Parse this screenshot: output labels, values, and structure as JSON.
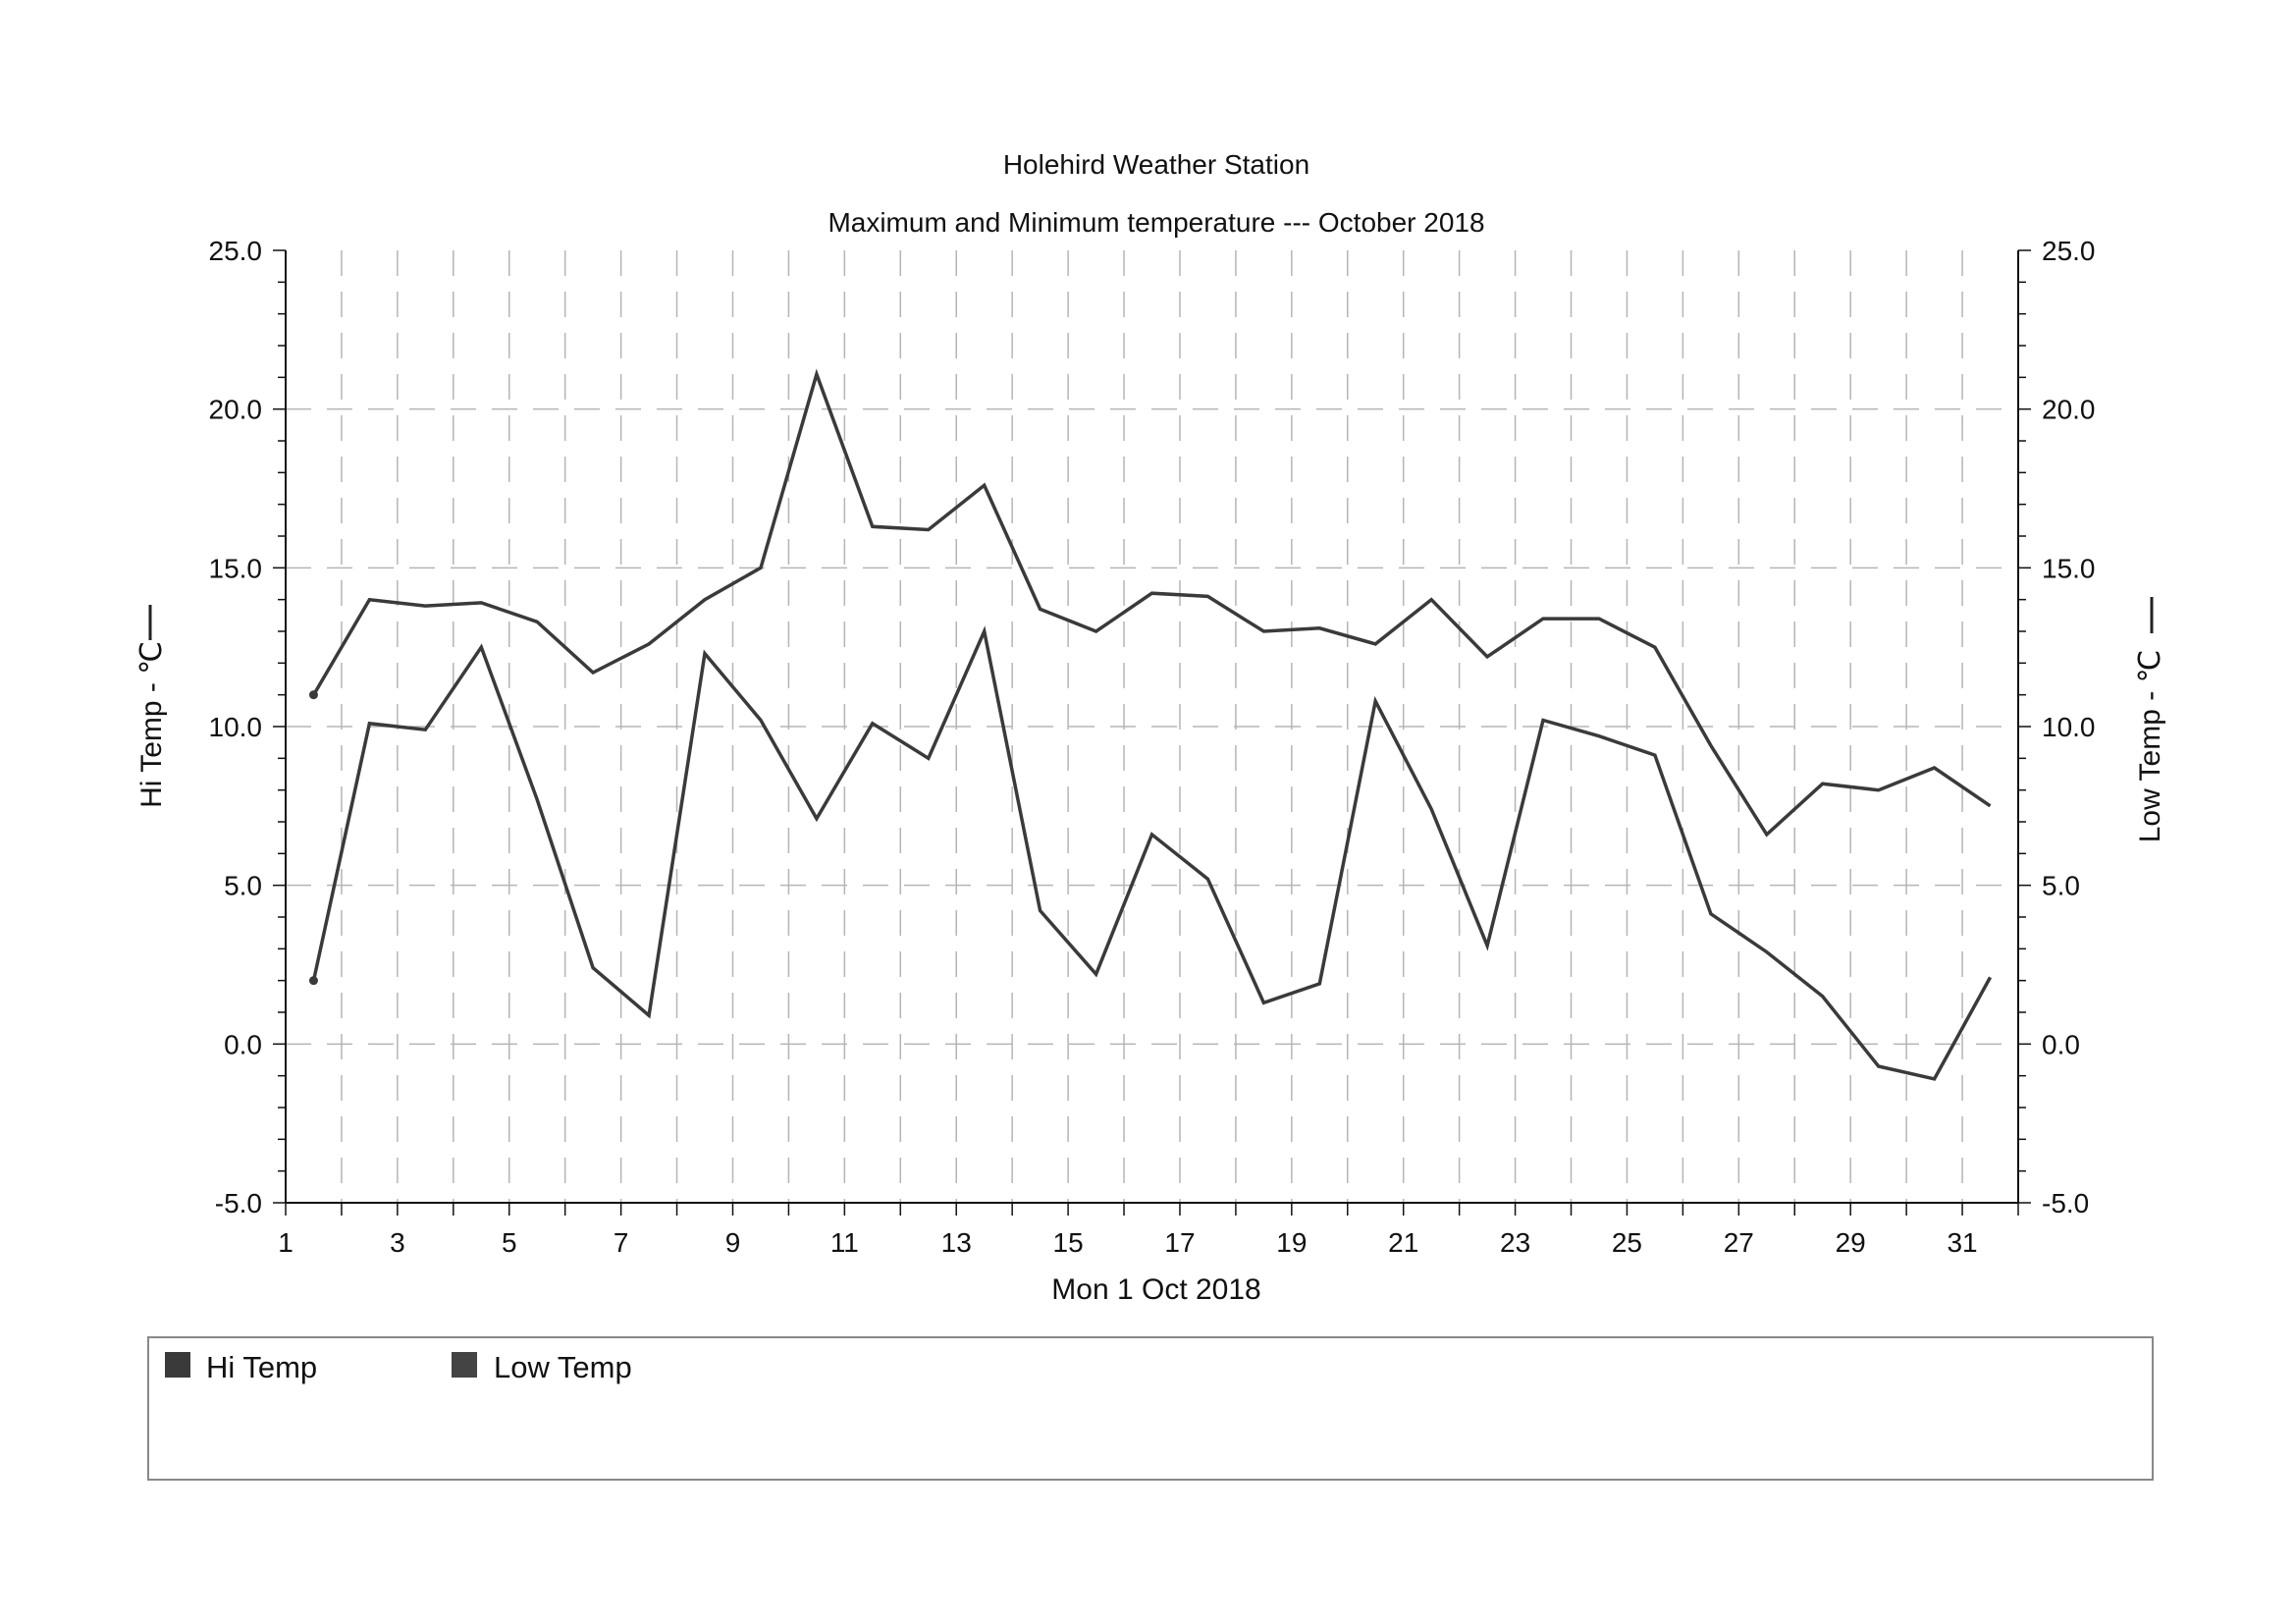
{
  "chart_data": {
    "type": "line",
    "title": "Holehird Weather Station",
    "subtitle": "Maximum and Minimum temperature --- October 2018",
    "xlabel": "Mon 1 Oct 2018",
    "ylabel_left": "Hi Temp - ℃",
    "ylabel_right": "Low Temp - ℃",
    "ylim": [
      -5.0,
      25.0
    ],
    "yticks": [
      "25.0",
      "20.0",
      "15.0",
      "10.0",
      "5.0",
      "0.0",
      "-5.0"
    ],
    "xticks": [
      "1",
      "3",
      "5",
      "7",
      "9",
      "11",
      "13",
      "15",
      "17",
      "19",
      "21",
      "23",
      "25",
      "27",
      "29",
      "31"
    ],
    "x_range": [
      1,
      32
    ],
    "grid": true,
    "legend_position": "bottom",
    "x": [
      1.5,
      2.5,
      3.5,
      4.5,
      5.5,
      6.5,
      7.5,
      8.5,
      9.5,
      10.5,
      11.5,
      12.5,
      13.5,
      14.5,
      15.5,
      16.5,
      17.5,
      18.5,
      19.5,
      20.5,
      21.5,
      22.5,
      23.5,
      24.5,
      25.5,
      26.5,
      27.5,
      28.5,
      29.5,
      30.5,
      31.5
    ],
    "series": [
      {
        "name": "Hi Temp",
        "color": "#3a3a3a",
        "values": [
          11.0,
          14.0,
          13.8,
          13.9,
          13.3,
          11.7,
          12.6,
          14.0,
          15.0,
          21.1,
          16.3,
          16.2,
          17.6,
          13.7,
          13.0,
          14.2,
          14.1,
          13.0,
          13.1,
          12.6,
          14.0,
          12.2,
          13.4,
          13.4,
          12.5,
          9.4,
          6.6,
          8.2,
          8.0,
          8.7,
          7.5
        ]
      },
      {
        "name": "Low Temp",
        "color": "#3a3a3a",
        "values": [
          2.0,
          10.1,
          9.9,
          12.5,
          7.7,
          2.4,
          0.9,
          12.3,
          10.2,
          7.1,
          10.1,
          9.0,
          13.0,
          4.2,
          2.2,
          6.6,
          5.2,
          1.3,
          1.9,
          10.8,
          7.4,
          3.1,
          10.2,
          9.7,
          9.1,
          4.1,
          2.9,
          1.5,
          -0.7,
          -1.1,
          2.1
        ]
      }
    ]
  }
}
